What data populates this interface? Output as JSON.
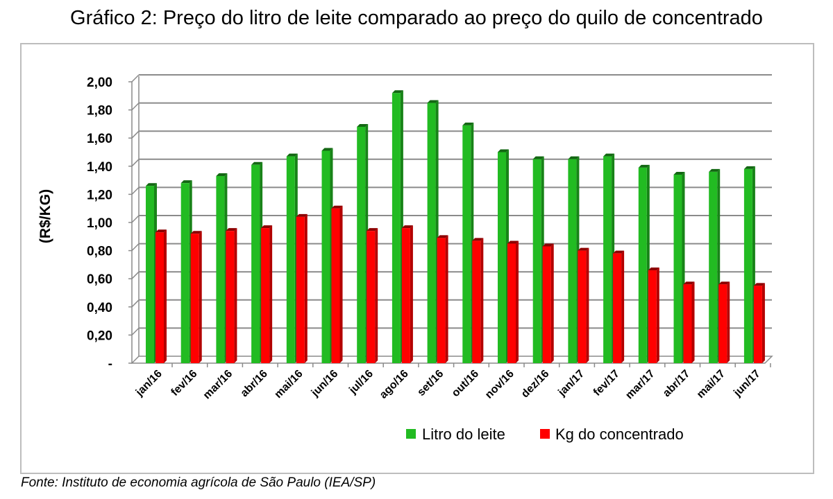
{
  "title": "Gráfico 2: Preço do litro de leite comparado ao preço do quilo de concentrado",
  "source": "Fonte: Instituto de economia agrícola de São Paulo (IEA/SP)",
  "chart_data": {
    "type": "bar",
    "categories": [
      "jan/16",
      "fev/16",
      "mar/16",
      "abr/16",
      "mai/16",
      "jun/16",
      "jul/16",
      "ago/16",
      "set/16",
      "out/16",
      "nov/16",
      "dez/16",
      "jan/17",
      "fev/17",
      "mar/17",
      "abr/17",
      "mai/17",
      "jun/17"
    ],
    "series": [
      {
        "name": "Litro do leite",
        "color": "#22bb22",
        "values": [
          1.26,
          1.28,
          1.33,
          1.41,
          1.47,
          1.51,
          1.68,
          1.92,
          1.85,
          1.69,
          1.5,
          1.45,
          1.45,
          1.47,
          1.39,
          1.34,
          1.36,
          1.38
        ]
      },
      {
        "name": "Kg do concentrado",
        "color": "#ff0000",
        "values": [
          0.93,
          0.92,
          0.94,
          0.96,
          1.04,
          1.1,
          0.94,
          0.96,
          0.89,
          0.87,
          0.85,
          0.83,
          0.8,
          0.78,
          0.66,
          0.56,
          0.56,
          0.55
        ]
      }
    ],
    "ylabel": "(R$/KG)",
    "xlabel": "",
    "ylim": [
      0,
      2.0
    ],
    "yticks": [
      "-",
      "0,20",
      "0,40",
      "0,60",
      "0,80",
      "1,00",
      "1,20",
      "1,40",
      "1,60",
      "1,80",
      "2,00"
    ],
    "grid": true,
    "legend_position": "bottom"
  }
}
